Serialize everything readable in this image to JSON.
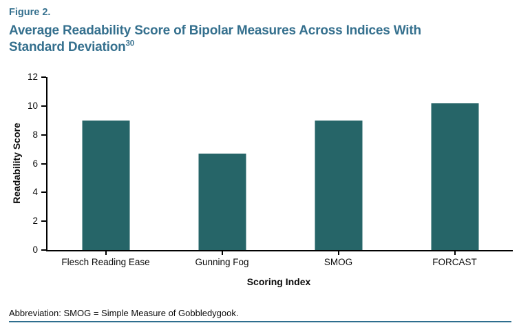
{
  "header": {
    "figure_label": "Figure 2.",
    "title_line1": "Average Readability Score of Bipolar Measures Across Indices With",
    "title_line2": "Standard Deviation",
    "title_superscript": "30"
  },
  "footnote": "Abbreviation: SMOG = Simple Measure of Gobbledygook.",
  "colors": {
    "title": "#35708e",
    "bar": "#266568",
    "axis": "#000000",
    "bottom_rule": "#2f6e8e"
  },
  "chart_data": {
    "type": "bar",
    "title": "Average Readability Score of Bipolar Measures Across Indices With Standard Deviation",
    "categories": [
      "Flesch Reading Ease",
      "Gunning Fog",
      "SMOG",
      "FORCAST"
    ],
    "values": [
      9.0,
      6.7,
      9.0,
      10.2
    ],
    "xlabel": "Scoring Index",
    "ylabel": "Readability Score",
    "ylim": [
      0,
      12
    ],
    "yticks": [
      0,
      2,
      4,
      6,
      8,
      10,
      12
    ],
    "grid": false,
    "legend": false,
    "bar_color": "#266568"
  }
}
